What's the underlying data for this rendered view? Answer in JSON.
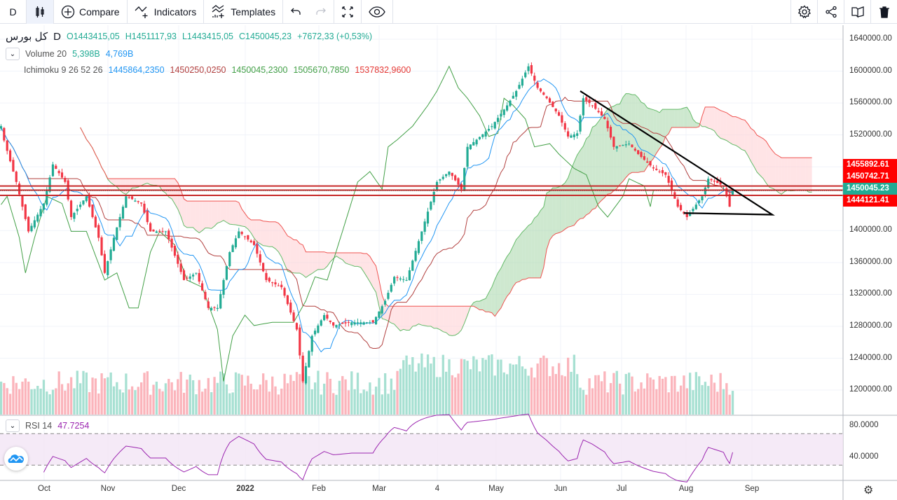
{
  "toolbar": {
    "interval": "D",
    "compare": "Compare",
    "indicators": "Indicators",
    "templates": "Templates"
  },
  "legend": {
    "symbol": "کل بورس",
    "interval": "D",
    "open": "O1443415,05",
    "high": "H1451117,93",
    "low": "L1443415,05",
    "close": "C1450045,23",
    "change": "+7672,33 (+0,53%)",
    "volume_label": "Volume 20",
    "volume_v1": "5,398B",
    "volume_v2": "4,769B",
    "ichimoku_label": "Ichimoku 9 26 52 26",
    "ichi_v1": "1445864,2350",
    "ichi_v2": "1450250,0250",
    "ichi_v3": "1450045,2300",
    "ichi_v4": "1505670,7850",
    "ichi_v5": "1537832,9600",
    "rsi_label": "RSI 14",
    "rsi_value": "47.7254"
  },
  "price_axis": [
    "1640000.00",
    "1600000.00",
    "1560000.00",
    "1520000.00",
    "1400000.00",
    "1360000.00",
    "1320000.00",
    "1280000.00",
    "1240000.00",
    "1200000.00"
  ],
  "price_labels": [
    {
      "text": "1455892.61",
      "value": 1455892.61,
      "color": "#ff0000"
    },
    {
      "text": "1450742.71",
      "value": 1450742.71,
      "color": "#ff0000"
    },
    {
      "text": "1450045.23",
      "value": 1450045.23,
      "color": "#22ab94"
    },
    {
      "text": "1444121.41",
      "value": 1444121.41,
      "color": "#ff0000"
    }
  ],
  "rsi_axis": [
    "80.0000",
    "40.0000"
  ],
  "time_axis": [
    "Oct",
    "Nov",
    "Dec",
    "2022",
    "Feb",
    "Mar",
    "4",
    "May",
    "Jun",
    "Jul",
    "Aug",
    "Sep"
  ],
  "colors": {
    "up": "#22ab94",
    "down": "#f23645",
    "tenkan": "#2196f3",
    "kijun": "#b2403f",
    "lagging": "#43a047",
    "cloud_up": "#a5d6a7",
    "cloud_down": "#ffcdd2",
    "rsi": "#9c27b0"
  },
  "chart_data": {
    "type": "candlestick",
    "keypoints": [
      [
        0,
        1531000
      ],
      [
        1,
        1513000
      ],
      [
        5,
        1461000
      ],
      [
        9,
        1399000
      ],
      [
        14,
        1434000
      ],
      [
        17,
        1483000
      ],
      [
        21,
        1461000
      ],
      [
        23,
        1417000
      ],
      [
        28,
        1443000
      ],
      [
        32,
        1391000
      ],
      [
        34,
        1347000
      ],
      [
        37,
        1391000
      ],
      [
        41,
        1443000
      ],
      [
        46,
        1434000
      ],
      [
        49,
        1399000
      ],
      [
        54,
        1399000
      ],
      [
        60,
        1338000
      ],
      [
        64,
        1347000
      ],
      [
        68,
        1303000
      ],
      [
        71,
        1303000
      ],
      [
        75,
        1373000
      ],
      [
        78,
        1399000
      ],
      [
        83,
        1382000
      ],
      [
        87,
        1338000
      ],
      [
        92,
        1329000
      ],
      [
        97,
        1276000
      ],
      [
        99,
        1211000
      ],
      [
        102,
        1268000
      ],
      [
        106,
        1294000
      ],
      [
        109,
        1281000
      ],
      [
        115,
        1285000
      ],
      [
        122,
        1285000
      ],
      [
        126,
        1312000
      ],
      [
        129,
        1342000
      ],
      [
        133,
        1338000
      ],
      [
        138,
        1399000
      ],
      [
        143,
        1461000
      ],
      [
        147,
        1474000
      ],
      [
        151,
        1452000
      ],
      [
        153,
        1505000
      ],
      [
        156,
        1514000
      ],
      [
        161,
        1531000
      ],
      [
        166,
        1557000
      ],
      [
        169,
        1575000
      ],
      [
        173,
        1606000
      ],
      [
        176,
        1579000
      ],
      [
        179,
        1566000
      ],
      [
        183,
        1544000
      ],
      [
        186,
        1518000
      ],
      [
        189,
        1522000
      ],
      [
        191,
        1566000
      ],
      [
        194,
        1557000
      ],
      [
        198,
        1540000
      ],
      [
        201,
        1505000
      ],
      [
        206,
        1509000
      ],
      [
        209,
        1496000
      ],
      [
        214,
        1478000
      ],
      [
        218,
        1470000
      ],
      [
        222,
        1430000
      ],
      [
        225,
        1417000
      ],
      [
        230,
        1443000
      ],
      [
        232,
        1465000
      ],
      [
        237,
        1456000
      ],
      [
        239,
        1430000
      ],
      [
        240,
        1450045
      ]
    ],
    "annotations": {
      "trendline_upper": [
        [
          190,
          1575000
        ],
        [
          253,
          1420000
        ]
      ],
      "trendline_lower": [
        [
          224,
          1422000
        ],
        [
          253,
          1420000
        ]
      ]
    },
    "ylim": [
      1180000,
      1660000
    ],
    "rsi_levels": [
      70,
      30
    ]
  }
}
